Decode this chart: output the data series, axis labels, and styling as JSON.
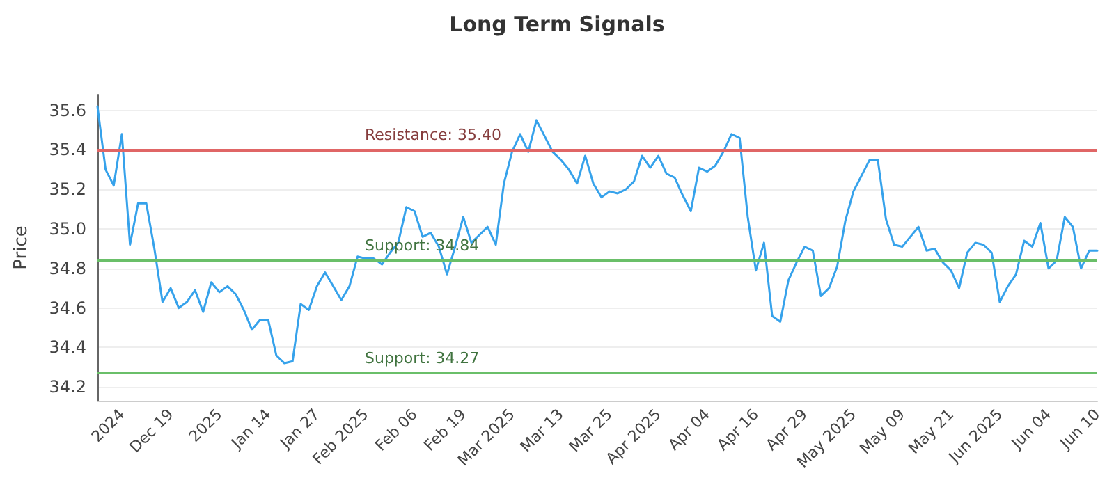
{
  "chart_data": {
    "type": "line",
    "title": "Long Term Signals",
    "ylabel": "Price",
    "categories": [
      null,
      null,
      null,
      "2024",
      null,
      null,
      null,
      null,
      null,
      "Dec 19",
      null,
      null,
      null,
      null,
      null,
      "2025",
      null,
      null,
      null,
      null,
      null,
      "Jan 14",
      null,
      null,
      null,
      null,
      null,
      "Jan 27",
      null,
      null,
      null,
      null,
      null,
      "Feb 2025",
      null,
      null,
      null,
      null,
      null,
      "Feb 06",
      null,
      null,
      null,
      null,
      null,
      "Feb 19",
      null,
      null,
      null,
      null,
      null,
      "Mar 2025",
      null,
      null,
      null,
      null,
      null,
      "Mar 13",
      null,
      null,
      null,
      null,
      null,
      "Mar 25",
      null,
      null,
      null,
      null,
      null,
      "Apr 2025",
      null,
      null,
      null,
      null,
      null,
      "Apr 04",
      null,
      null,
      null,
      null,
      null,
      "Apr 16",
      null,
      null,
      null,
      null,
      null,
      "Apr 29",
      null,
      null,
      null,
      null,
      null,
      "May 2025",
      null,
      null,
      null,
      null,
      null,
      "May 09",
      null,
      null,
      null,
      null,
      null,
      "May 21",
      null,
      null,
      null,
      null,
      null,
      "Jun 2025",
      null,
      null,
      null,
      null,
      null,
      "Jun 04",
      null,
      null,
      null,
      null,
      null,
      "Jun 10"
    ],
    "series": [
      {
        "color": "#36a2eb",
        "values": [
          35.62,
          35.3,
          35.22,
          35.48,
          34.92,
          35.13,
          35.13,
          34.9,
          34.63,
          34.7,
          34.6,
          34.63,
          34.69,
          34.58,
          34.73,
          34.68,
          34.71,
          34.67,
          34.59,
          34.49,
          34.54,
          34.54,
          34.36,
          34.32,
          34.33,
          34.62,
          34.59,
          34.71,
          34.78,
          34.71,
          34.64,
          34.71,
          34.86,
          34.85,
          34.85,
          34.82,
          34.88,
          34.93,
          35.11,
          35.09,
          34.96,
          34.98,
          34.91,
          34.77,
          34.91,
          35.06,
          34.93,
          34.97,
          35.01,
          34.92,
          35.23,
          35.39,
          35.48,
          35.39,
          35.55,
          35.47,
          35.39,
          35.35,
          35.3,
          35.23,
          35.37,
          35.23,
          35.16,
          35.19,
          35.18,
          35.2,
          35.24,
          35.37,
          35.31,
          35.37,
          35.28,
          35.26,
          35.17,
          35.09,
          35.31,
          35.29,
          35.32,
          35.39,
          35.48,
          35.46,
          35.06,
          34.79,
          34.93,
          34.56,
          34.53,
          34.74,
          34.83,
          34.91,
          34.89,
          34.66,
          34.7,
          34.81,
          35.04,
          35.19,
          35.27,
          35.35,
          35.35,
          35.05,
          34.92,
          34.91,
          34.96,
          35.01,
          34.89,
          34.9,
          34.83,
          34.79,
          34.7,
          34.88,
          34.93,
          34.92,
          34.88,
          34.63,
          34.71,
          34.77,
          34.94,
          34.91,
          35.03,
          34.8,
          34.84,
          35.06,
          35.01,
          34.8,
          34.89,
          34.89
        ]
      }
    ],
    "ylim": [
      34.13,
      35.68
    ],
    "yticks": [
      {
        "value": 34.2,
        "label": "34.2"
      },
      {
        "value": 34.4,
        "label": "34.4"
      },
      {
        "value": 34.6,
        "label": "34.6"
      },
      {
        "value": 34.8,
        "label": "34.8"
      },
      {
        "value": 35.0,
        "label": "35.0"
      },
      {
        "value": 35.2,
        "label": "35.2"
      },
      {
        "value": 35.4,
        "label": "35.4"
      },
      {
        "value": 35.6,
        "label": "35.6"
      }
    ],
    "ref_lines": [
      {
        "axis": "y",
        "value": 35.4,
        "label": "Resistance: 35.40",
        "color": "#e06666"
      },
      {
        "axis": "y",
        "value": 34.84,
        "label": "Support: 34.84",
        "color": "#6abf69"
      },
      {
        "axis": "y",
        "value": 34.27,
        "label": "Support: 34.27",
        "color": "#6abf69"
      }
    ],
    "grid": "y",
    "marker": "none",
    "line_style": "solid"
  }
}
